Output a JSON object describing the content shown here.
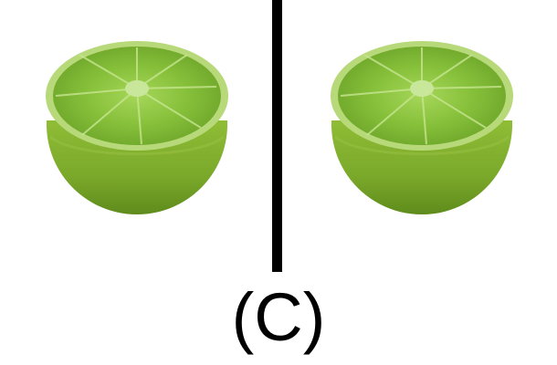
{
  "caption": "(C)",
  "colors": {
    "background": "#ffffff",
    "divider": "#000000",
    "rind_dark": "#6f9a22",
    "rind_light": "#8fbd36",
    "flesh": "#7ab52c",
    "flesh_highlight": "#9ccf48",
    "caption_text": "#000000"
  },
  "panels": [
    {
      "content": "lime-half",
      "side": "left"
    },
    {
      "content": "lime-half",
      "side": "right"
    }
  ]
}
